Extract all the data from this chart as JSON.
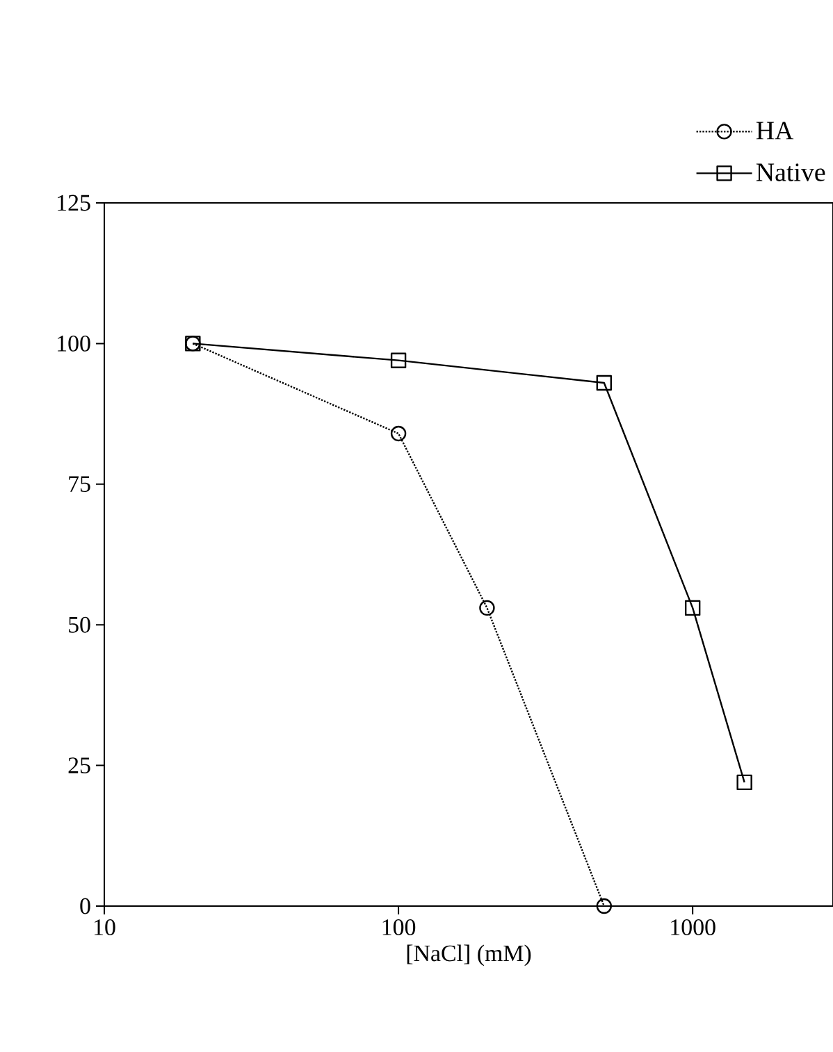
{
  "chart_data": {
    "type": "line",
    "xlabel": "[NaCl] (mM)",
    "log": "x",
    "xlim": [
      10,
      3000
    ],
    "ylim": [
      0,
      125
    ],
    "xticks": [
      10,
      100,
      1000
    ],
    "yticks": [
      0,
      25,
      50,
      75,
      100,
      125
    ],
    "grid": false,
    "legend": "top right",
    "series": [
      {
        "name": "HA",
        "color": "#000000",
        "x": [
          20,
          100,
          200,
          500
        ],
        "values": [
          100,
          84,
          53,
          0
        ],
        "marker": "circle",
        "line_style": "dotted"
      },
      {
        "name": "Native",
        "color": "#000000",
        "x": [
          20,
          100,
          500,
          1000,
          1500
        ],
        "values": [
          100,
          97,
          93,
          53,
          22
        ],
        "marker": "square",
        "line_style": "solid"
      }
    ]
  }
}
